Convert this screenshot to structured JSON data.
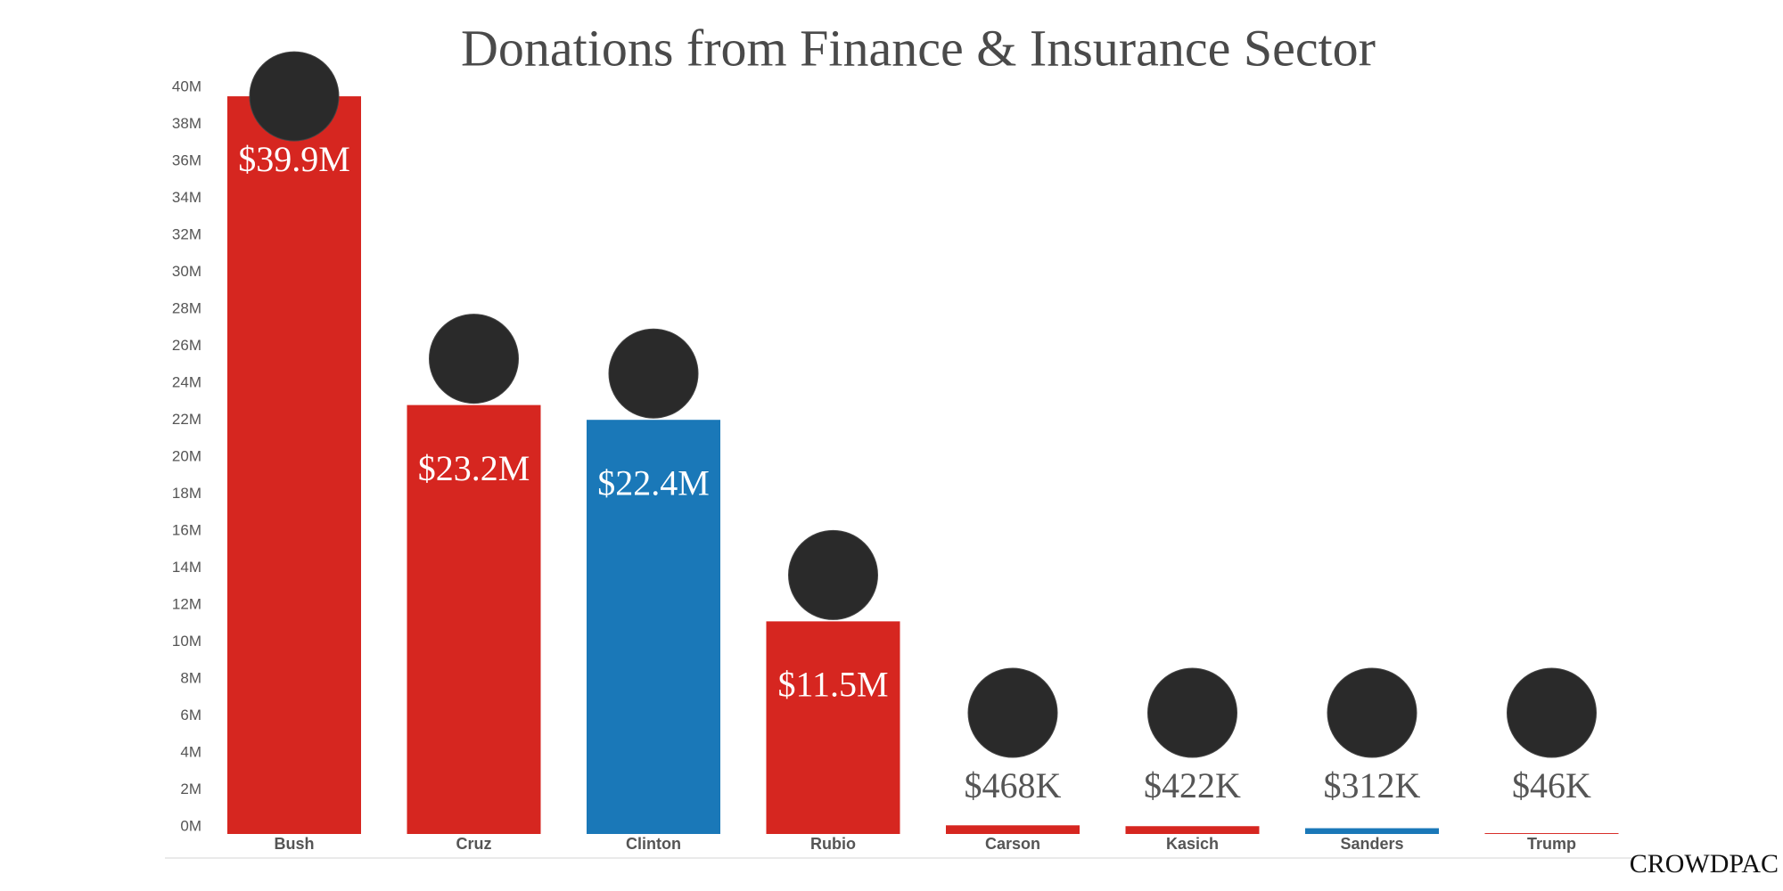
{
  "chart_data": {
    "type": "bar",
    "title": "Donations from Finance & Insurance Sector",
    "categories": [
      "Bush",
      "Cruz",
      "Clinton",
      "Rubio",
      "Carson",
      "Kasich",
      "Sanders",
      "Trump"
    ],
    "values": [
      39.9,
      23.2,
      22.4,
      11.5,
      0.468,
      0.422,
      0.312,
      0.046
    ],
    "value_labels": [
      "$39.9M",
      "$23.2M",
      "$22.4M",
      "$11.5M",
      "$468K",
      "$422K",
      "$312K",
      "$46K"
    ],
    "colors": [
      "#d62620",
      "#d62620",
      "#1a78b8",
      "#d62620",
      "#d62620",
      "#d62620",
      "#1a78b8",
      "#d62620"
    ],
    "ylim": [
      0,
      40
    ],
    "yticks": [
      {
        "value": 0,
        "label": "0M"
      },
      {
        "value": 2,
        "label": "2M"
      },
      {
        "value": 4,
        "label": "4M"
      },
      {
        "value": 6,
        "label": "6M"
      },
      {
        "value": 8,
        "label": "8M"
      },
      {
        "value": 10,
        "label": "10M"
      },
      {
        "value": 12,
        "label": "12M"
      },
      {
        "value": 14,
        "label": "14M"
      },
      {
        "value": 16,
        "label": "16M"
      },
      {
        "value": 18,
        "label": "18M"
      },
      {
        "value": 20,
        "label": "20M"
      },
      {
        "value": 22,
        "label": "22M"
      },
      {
        "value": 24,
        "label": "24M"
      },
      {
        "value": 26,
        "label": "26M"
      },
      {
        "value": 28,
        "label": "28M"
      },
      {
        "value": 30,
        "label": "30M"
      },
      {
        "value": 32,
        "label": "32M"
      },
      {
        "value": 34,
        "label": "34M"
      },
      {
        "value": 36,
        "label": "36M"
      },
      {
        "value": 38,
        "label": "38M"
      },
      {
        "value": 40,
        "label": "40M"
      }
    ],
    "source": "CROWDPAC"
  }
}
